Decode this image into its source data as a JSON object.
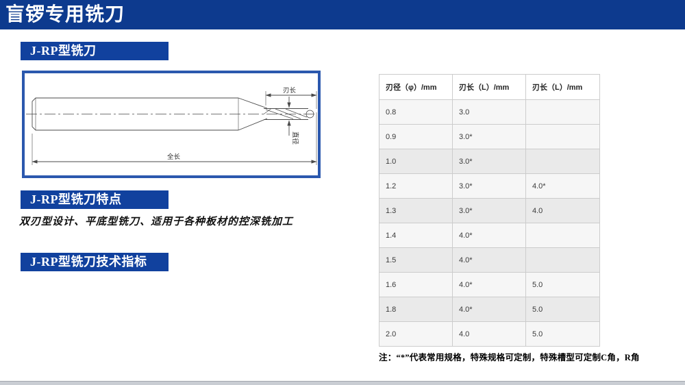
{
  "header": {
    "title": "盲锣专用铣刀"
  },
  "sections": {
    "model": {
      "label": "J-RP型铣刀"
    },
    "features": {
      "label": "J-RP型铣刀特点",
      "text": "双刃型设计、平底型铣刀、适用于各种板材的控深铣加工"
    },
    "specs": {
      "label": "J-RP型铣刀技术指标"
    }
  },
  "diagram": {
    "labels": {
      "blade_length": "刃长",
      "diameter": "直径",
      "total_length": "全长"
    }
  },
  "table": {
    "columns": [
      "刃径（φ）/mm",
      "刃长（L）/mm",
      "刃长（L）/mm"
    ],
    "rows": [
      [
        "0.8",
        "3.0",
        ""
      ],
      [
        "0.9",
        "3.0*",
        ""
      ],
      [
        "1.0",
        "3.0*",
        ""
      ],
      [
        "1.2",
        "3.0*",
        "4.0*"
      ],
      [
        "1.3",
        "3.0*",
        "4.0"
      ],
      [
        "1.4",
        "4.0*",
        ""
      ],
      [
        "1.5",
        "4.0*",
        ""
      ],
      [
        "1.6",
        "4.0*",
        "5.0"
      ],
      [
        "1.8",
        "4.0*",
        "5.0"
      ],
      [
        "2.0",
        "4.0",
        "5.0"
      ]
    ]
  },
  "note": "注：“*”代表常用规格，特殊规格可定制，特殊槽型可定制C角，R角",
  "colors": {
    "header_navy": "#0d3a8e",
    "label_blue": "#11419e",
    "drawing_border_blue": "#2b58ae",
    "table_border": "#cccccc",
    "row_light": "#f6f6f6",
    "row_dark": "#eaeaea"
  }
}
